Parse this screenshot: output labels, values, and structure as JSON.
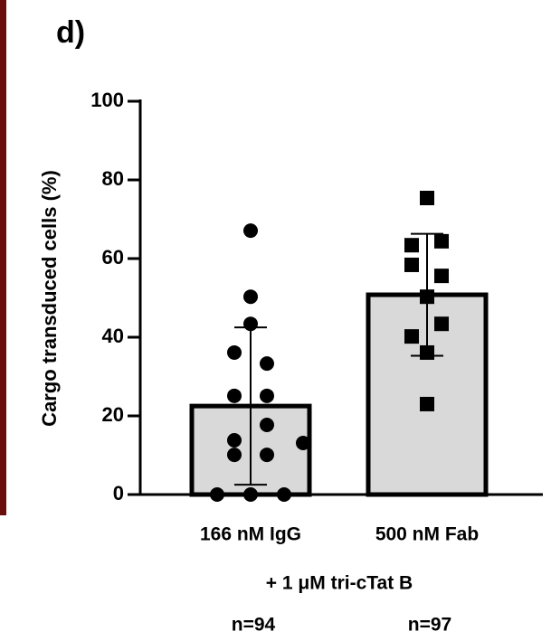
{
  "chart_data": {
    "type": "bar",
    "title": "d)",
    "ylabel": "Cargo transduced cells (%)",
    "xlabel": "+ 1 μM tri-cTat B",
    "categories": [
      "166 nM IgG",
      "500 nM Fab"
    ],
    "counts": [
      "n=94",
      "n=97"
    ],
    "values": [
      22.5,
      50.8
    ],
    "errors": [
      20,
      15.5
    ],
    "color": "#d9d9d9",
    "points": [
      {
        "marker": "circle",
        "values": [
          67.1,
          50.3,
          43.4,
          36.1,
          33.3,
          25.1,
          25.1,
          13.8,
          17.7,
          13.1,
          10.1,
          10.1,
          0,
          0,
          0
        ]
      },
      {
        "marker": "square",
        "values": [
          75.4,
          63.4,
          64.4,
          58.4,
          55.6,
          50.3,
          43.4,
          40.2,
          36.1,
          23.0
        ]
      }
    ],
    "ylim": [
      0,
      100
    ],
    "yticks": [
      0,
      20,
      40,
      60,
      80,
      100
    ]
  }
}
